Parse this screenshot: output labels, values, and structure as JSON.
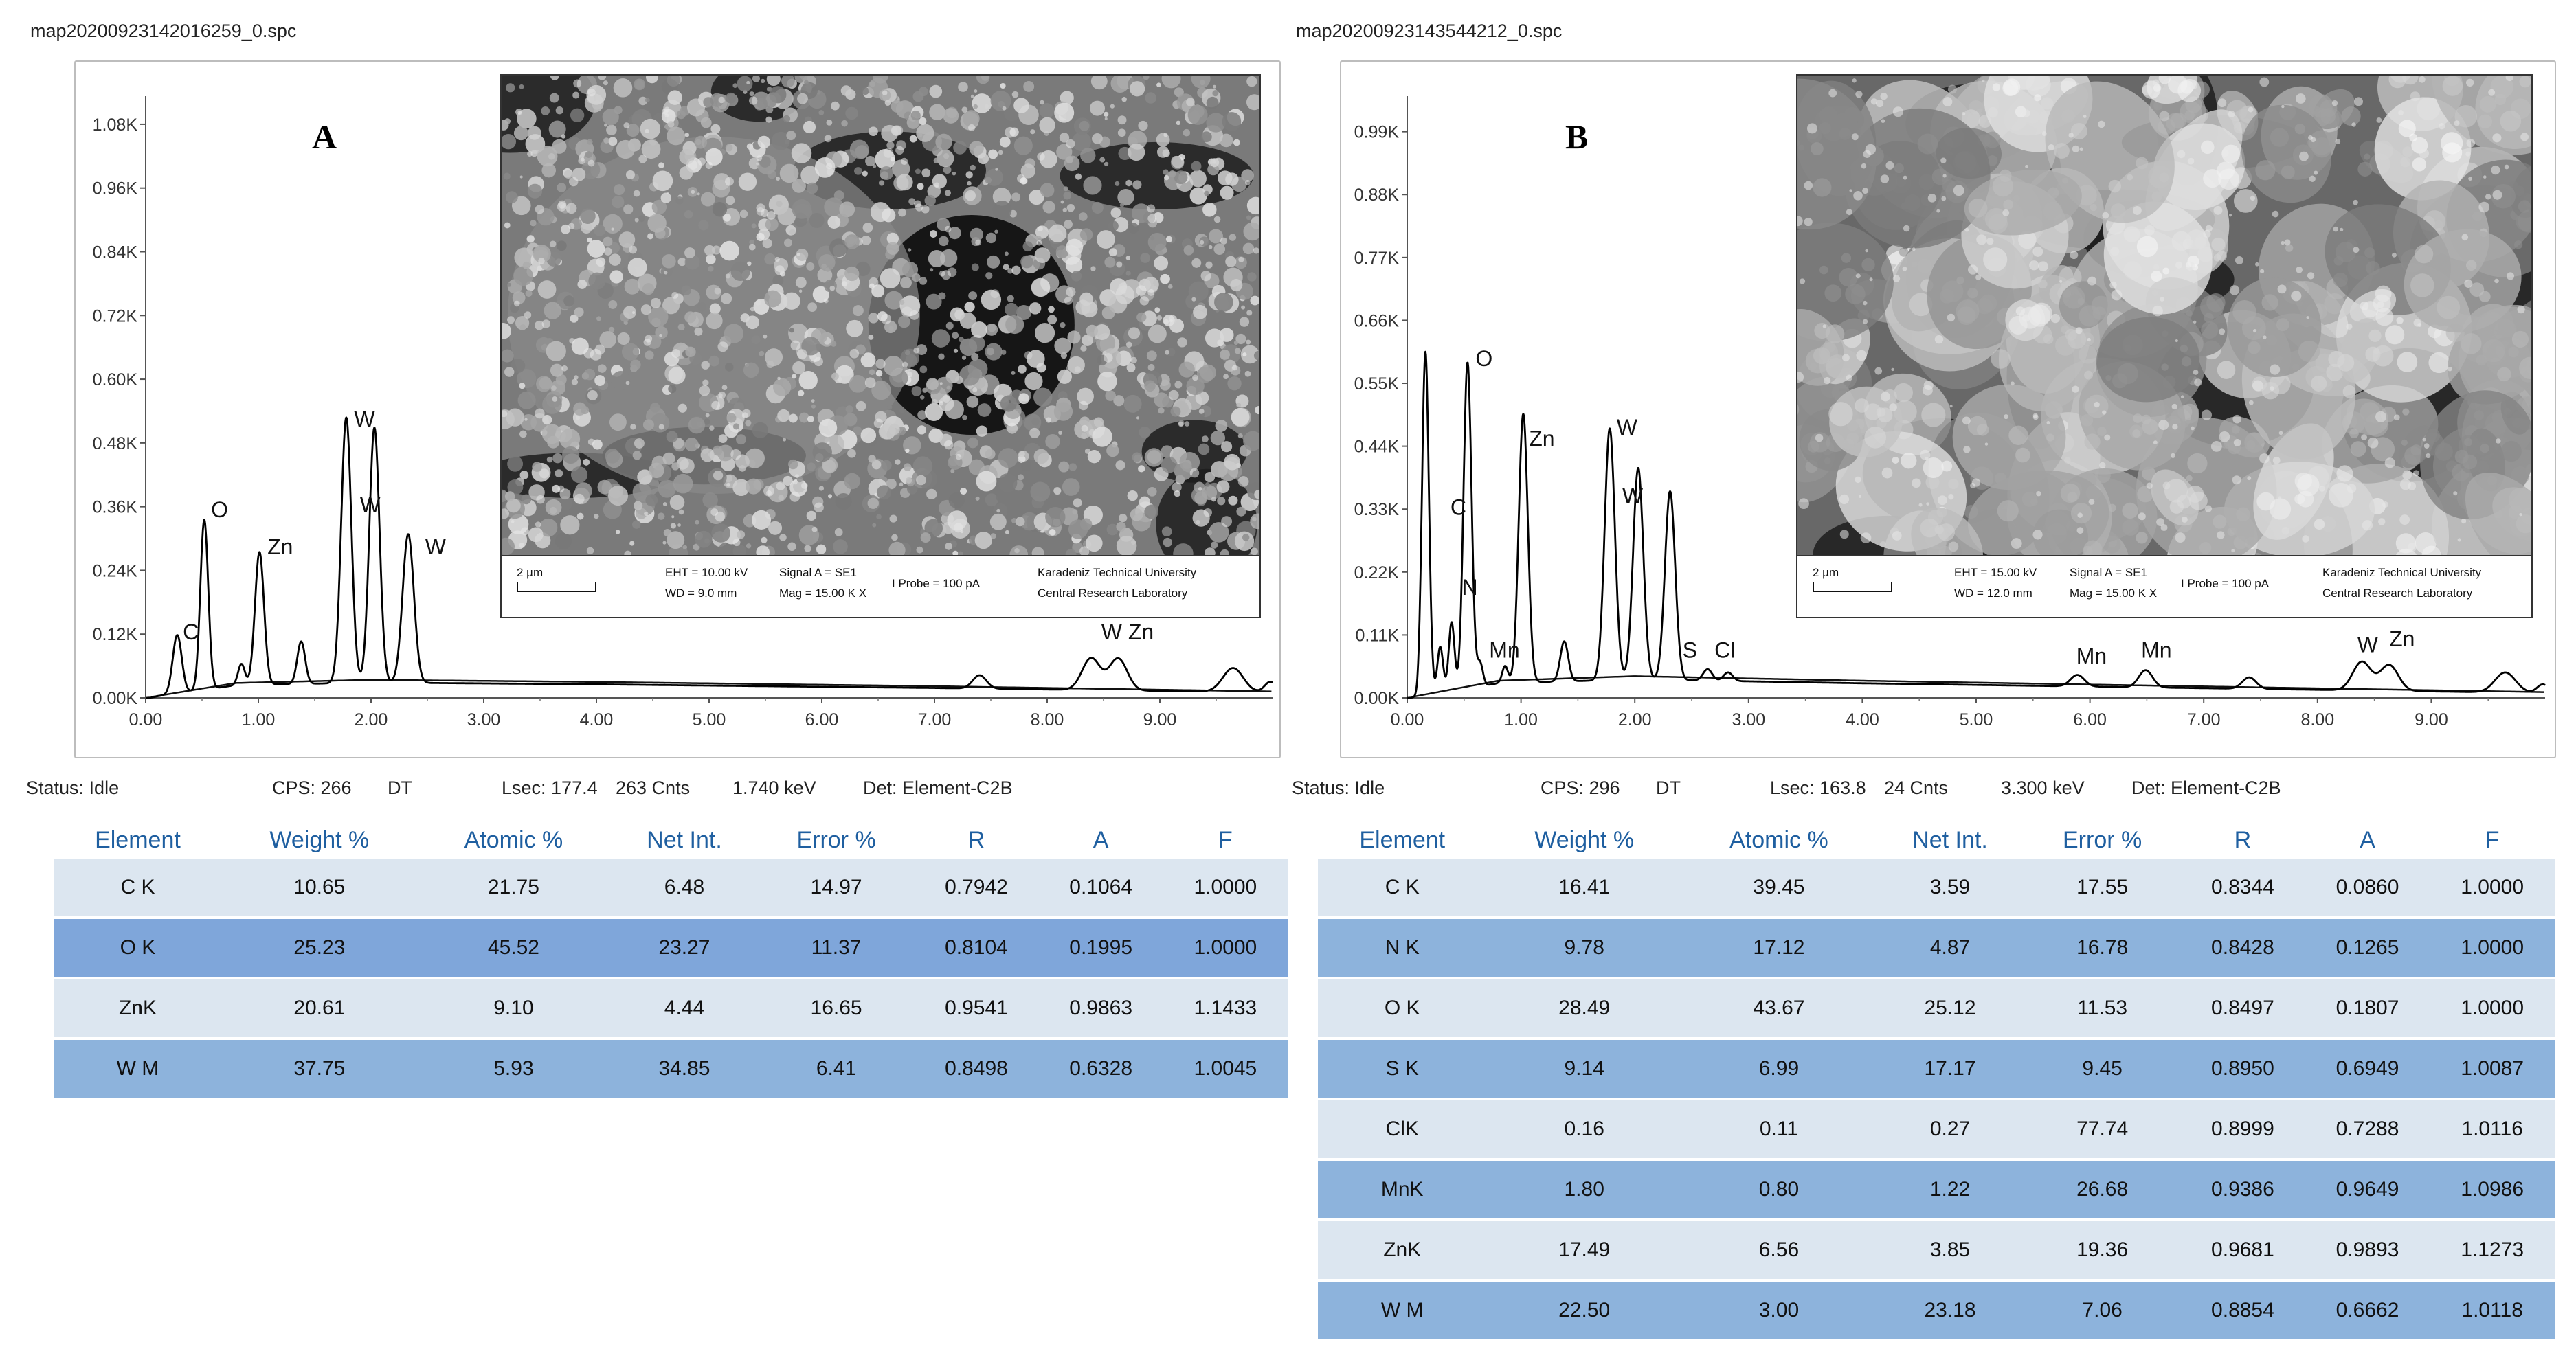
{
  "panels": [
    {
      "id": "A",
      "filename": "map20200923142016259_0.spc",
      "letter": "A",
      "status": {
        "state": "Status: Idle",
        "cps": "CPS: 266",
        "dt": "DT",
        "lsec": "Lsec: 177.4",
        "cnts": "263 Cnts",
        "kev": "1.740 keV",
        "det": "Det: Element-C2B"
      },
      "sem": {
        "scale": "2 µm",
        "eht": "EHT = 10.00 kV",
        "wd": "WD = 9.0 mm",
        "signal": "Signal A = SE1",
        "mag": "Mag = 15.00 K X",
        "probe": "I Probe =    100 pA",
        "lab1": "Karadeniz Technical University",
        "lab2": "Central Research Laboratory"
      },
      "table": {
        "headers": [
          "Element",
          "Weight %",
          "Atomic %",
          "Net Int.",
          "Error %",
          "R",
          "A",
          "F"
        ],
        "rows": [
          [
            "C K",
            "10.65",
            "21.75",
            "6.48",
            "14.97",
            "0.7942",
            "0.1064",
            "1.0000"
          ],
          [
            "O K",
            "25.23",
            "45.52",
            "23.27",
            "11.37",
            "0.8104",
            "0.1995",
            "1.0000"
          ],
          [
            "ZnK",
            "20.61",
            "9.10",
            "4.44",
            "16.65",
            "0.9541",
            "0.9863",
            "1.1433"
          ],
          [
            "W M",
            "37.75",
            "5.93",
            "34.85",
            "6.41",
            "0.8498",
            "0.6328",
            "1.0045"
          ]
        ]
      }
    },
    {
      "id": "B",
      "filename": "map20200923143544212_0.spc",
      "letter": "B",
      "status": {
        "state": "Status: Idle",
        "cps": "CPS: 296",
        "dt": "DT",
        "lsec": "Lsec: 163.8",
        "cnts": "24 Cnts",
        "kev": "3.300 keV",
        "det": "Det: Element-C2B"
      },
      "sem": {
        "scale": "2 µm",
        "eht": "EHT = 15.00 kV",
        "wd": "WD = 12.0 mm",
        "signal": "Signal A = SE1",
        "mag": "Mag = 15.00 K X",
        "probe": "I Probe =    100 pA",
        "lab1": "Karadeniz Technical University",
        "lab2": "Central Research Laboratory"
      },
      "table": {
        "headers": [
          "Element",
          "Weight %",
          "Atomic %",
          "Net Int.",
          "Error %",
          "R",
          "A",
          "F"
        ],
        "rows": [
          [
            "C K",
            "16.41",
            "39.45",
            "3.59",
            "17.55",
            "0.8344",
            "0.0860",
            "1.0000"
          ],
          [
            "N K",
            "9.78",
            "17.12",
            "4.87",
            "16.78",
            "0.8428",
            "0.1265",
            "1.0000"
          ],
          [
            "O K",
            "28.49",
            "43.67",
            "25.12",
            "11.53",
            "0.8497",
            "0.1807",
            "1.0000"
          ],
          [
            "S K",
            "9.14",
            "6.99",
            "17.17",
            "9.45",
            "0.8950",
            "0.6949",
            "1.0087"
          ],
          [
            "ClK",
            "0.16",
            "0.11",
            "0.27",
            "77.74",
            "0.8999",
            "0.7288",
            "1.0116"
          ],
          [
            "MnK",
            "1.80",
            "0.80",
            "1.22",
            "26.68",
            "0.9386",
            "0.9649",
            "1.0986"
          ],
          [
            "ZnK",
            "17.49",
            "6.56",
            "3.85",
            "19.36",
            "0.9681",
            "0.9893",
            "1.1273"
          ],
          [
            "W M",
            "22.50",
            "3.00",
            "23.18",
            "7.06",
            "0.8854",
            "0.6662",
            "1.0118"
          ]
        ]
      }
    }
  ],
  "chart_data": [
    {
      "type": "line",
      "panel": "A",
      "x_ticks": [
        "0.00",
        "1.00",
        "2.00",
        "3.00",
        "4.00",
        "5.00",
        "6.00",
        "7.00",
        "8.00",
        "9.00"
      ],
      "y_ticks": [
        "0.00K",
        "0.12K",
        "0.24K",
        "0.36K",
        "0.48K",
        "0.60K",
        "0.72K",
        "0.84K",
        "0.96K",
        "1.08K"
      ],
      "xlim": [
        0,
        10
      ],
      "ylim": [
        0,
        1.12
      ],
      "y_unit": "K",
      "peaks": [
        {
          "x": 0.28,
          "y": 0.11,
          "w": 0.04
        },
        {
          "x": 0.52,
          "y": 0.32,
          "w": 0.035
        },
        {
          "x": 0.85,
          "y": 0.04,
          "w": 0.03
        },
        {
          "x": 1.01,
          "y": 0.25,
          "w": 0.04
        },
        {
          "x": 1.38,
          "y": 0.08,
          "w": 0.035
        },
        {
          "x": 1.78,
          "y": 0.5,
          "w": 0.045
        },
        {
          "x": 2.03,
          "y": 0.48,
          "w": 0.045
        },
        {
          "x": 2.33,
          "y": 0.28,
          "w": 0.05
        },
        {
          "x": 7.4,
          "y": 0.025,
          "w": 0.06
        },
        {
          "x": 8.39,
          "y": 0.06,
          "w": 0.08
        },
        {
          "x": 8.63,
          "y": 0.06,
          "w": 0.08
        },
        {
          "x": 9.65,
          "y": 0.045,
          "w": 0.09
        },
        {
          "x": 9.98,
          "y": 0.02,
          "w": 0.05
        }
      ],
      "background": [
        [
          0,
          0.0
        ],
        [
          0.8,
          0.028
        ],
        [
          2.0,
          0.034
        ],
        [
          4.0,
          0.03
        ],
        [
          7.0,
          0.022
        ],
        [
          10.0,
          0.012
        ]
      ],
      "peak_labels": [
        {
          "text": "C",
          "x": 0.33,
          "y": 0.11
        },
        {
          "text": "O",
          "x": 0.58,
          "y": 0.34
        },
        {
          "text": "Zn",
          "x": 1.08,
          "y": 0.27
        },
        {
          "text": "W",
          "x": 1.85,
          "y": 0.51
        },
        {
          "text": "W",
          "x": 1.9,
          "y": 0.35
        },
        {
          "text": "W",
          "x": 2.48,
          "y": 0.27
        },
        {
          "text": "W Zn",
          "x": 8.48,
          "y": 0.11
        }
      ]
    },
    {
      "type": "line",
      "panel": "B",
      "x_ticks": [
        "0.00",
        "1.00",
        "2.00",
        "3.00",
        "4.00",
        "5.00",
        "6.00",
        "7.00",
        "8.00",
        "9.00"
      ],
      "y_ticks": [
        "0.00K",
        "0.11K",
        "0.22K",
        "0.33K",
        "0.44K",
        "0.55K",
        "0.66K",
        "0.77K",
        "0.88K",
        "0.99K"
      ],
      "xlim": [
        0,
        10
      ],
      "ylim": [
        0,
        1.04
      ],
      "y_unit": "K",
      "peaks": [
        {
          "x": 0.16,
          "y": 0.6,
          "w": 0.03
        },
        {
          "x": 0.29,
          "y": 0.08,
          "w": 0.025
        },
        {
          "x": 0.39,
          "y": 0.12,
          "w": 0.025
        },
        {
          "x": 0.53,
          "y": 0.57,
          "w": 0.035
        },
        {
          "x": 0.64,
          "y": 0.04,
          "w": 0.025
        },
        {
          "x": 0.86,
          "y": 0.03,
          "w": 0.025
        },
        {
          "x": 1.02,
          "y": 0.47,
          "w": 0.04
        },
        {
          "x": 1.38,
          "y": 0.07,
          "w": 0.035
        },
        {
          "x": 1.78,
          "y": 0.44,
          "w": 0.045
        },
        {
          "x": 2.03,
          "y": 0.37,
          "w": 0.045
        },
        {
          "x": 2.31,
          "y": 0.33,
          "w": 0.045
        },
        {
          "x": 2.64,
          "y": 0.02,
          "w": 0.04
        },
        {
          "x": 2.82,
          "y": 0.015,
          "w": 0.04
        },
        {
          "x": 5.89,
          "y": 0.02,
          "w": 0.06
        },
        {
          "x": 6.49,
          "y": 0.03,
          "w": 0.06
        },
        {
          "x": 7.4,
          "y": 0.02,
          "w": 0.06
        },
        {
          "x": 8.39,
          "y": 0.05,
          "w": 0.08
        },
        {
          "x": 8.63,
          "y": 0.045,
          "w": 0.08
        },
        {
          "x": 9.65,
          "y": 0.035,
          "w": 0.09
        },
        {
          "x": 9.98,
          "y": 0.015,
          "w": 0.05
        }
      ],
      "background": [
        [
          0,
          0.0
        ],
        [
          0.8,
          0.03
        ],
        [
          2.0,
          0.038
        ],
        [
          4.0,
          0.03
        ],
        [
          7.0,
          0.02
        ],
        [
          10.0,
          0.01
        ]
      ],
      "peak_labels": [
        {
          "text": "C",
          "x": 0.38,
          "y": 0.32
        },
        {
          "text": "N",
          "x": 0.48,
          "y": 0.18
        },
        {
          "text": "O",
          "x": 0.6,
          "y": 0.58
        },
        {
          "text": "Mn",
          "x": 0.72,
          "y": 0.07
        },
        {
          "text": "Zn",
          "x": 1.07,
          "y": 0.44
        },
        {
          "text": "W",
          "x": 1.84,
          "y": 0.46
        },
        {
          "text": "W",
          "x": 1.89,
          "y": 0.34
        },
        {
          "text": "S",
          "x": 2.42,
          "y": 0.07
        },
        {
          "text": "Cl",
          "x": 2.7,
          "y": 0.07
        },
        {
          "text": "Mn",
          "x": 5.88,
          "y": 0.06
        },
        {
          "text": "Mn",
          "x": 6.45,
          "y": 0.07
        },
        {
          "text": "W",
          "x": 8.35,
          "y": 0.08
        },
        {
          "text": "Zn",
          "x": 8.63,
          "y": 0.09
        }
      ]
    }
  ]
}
